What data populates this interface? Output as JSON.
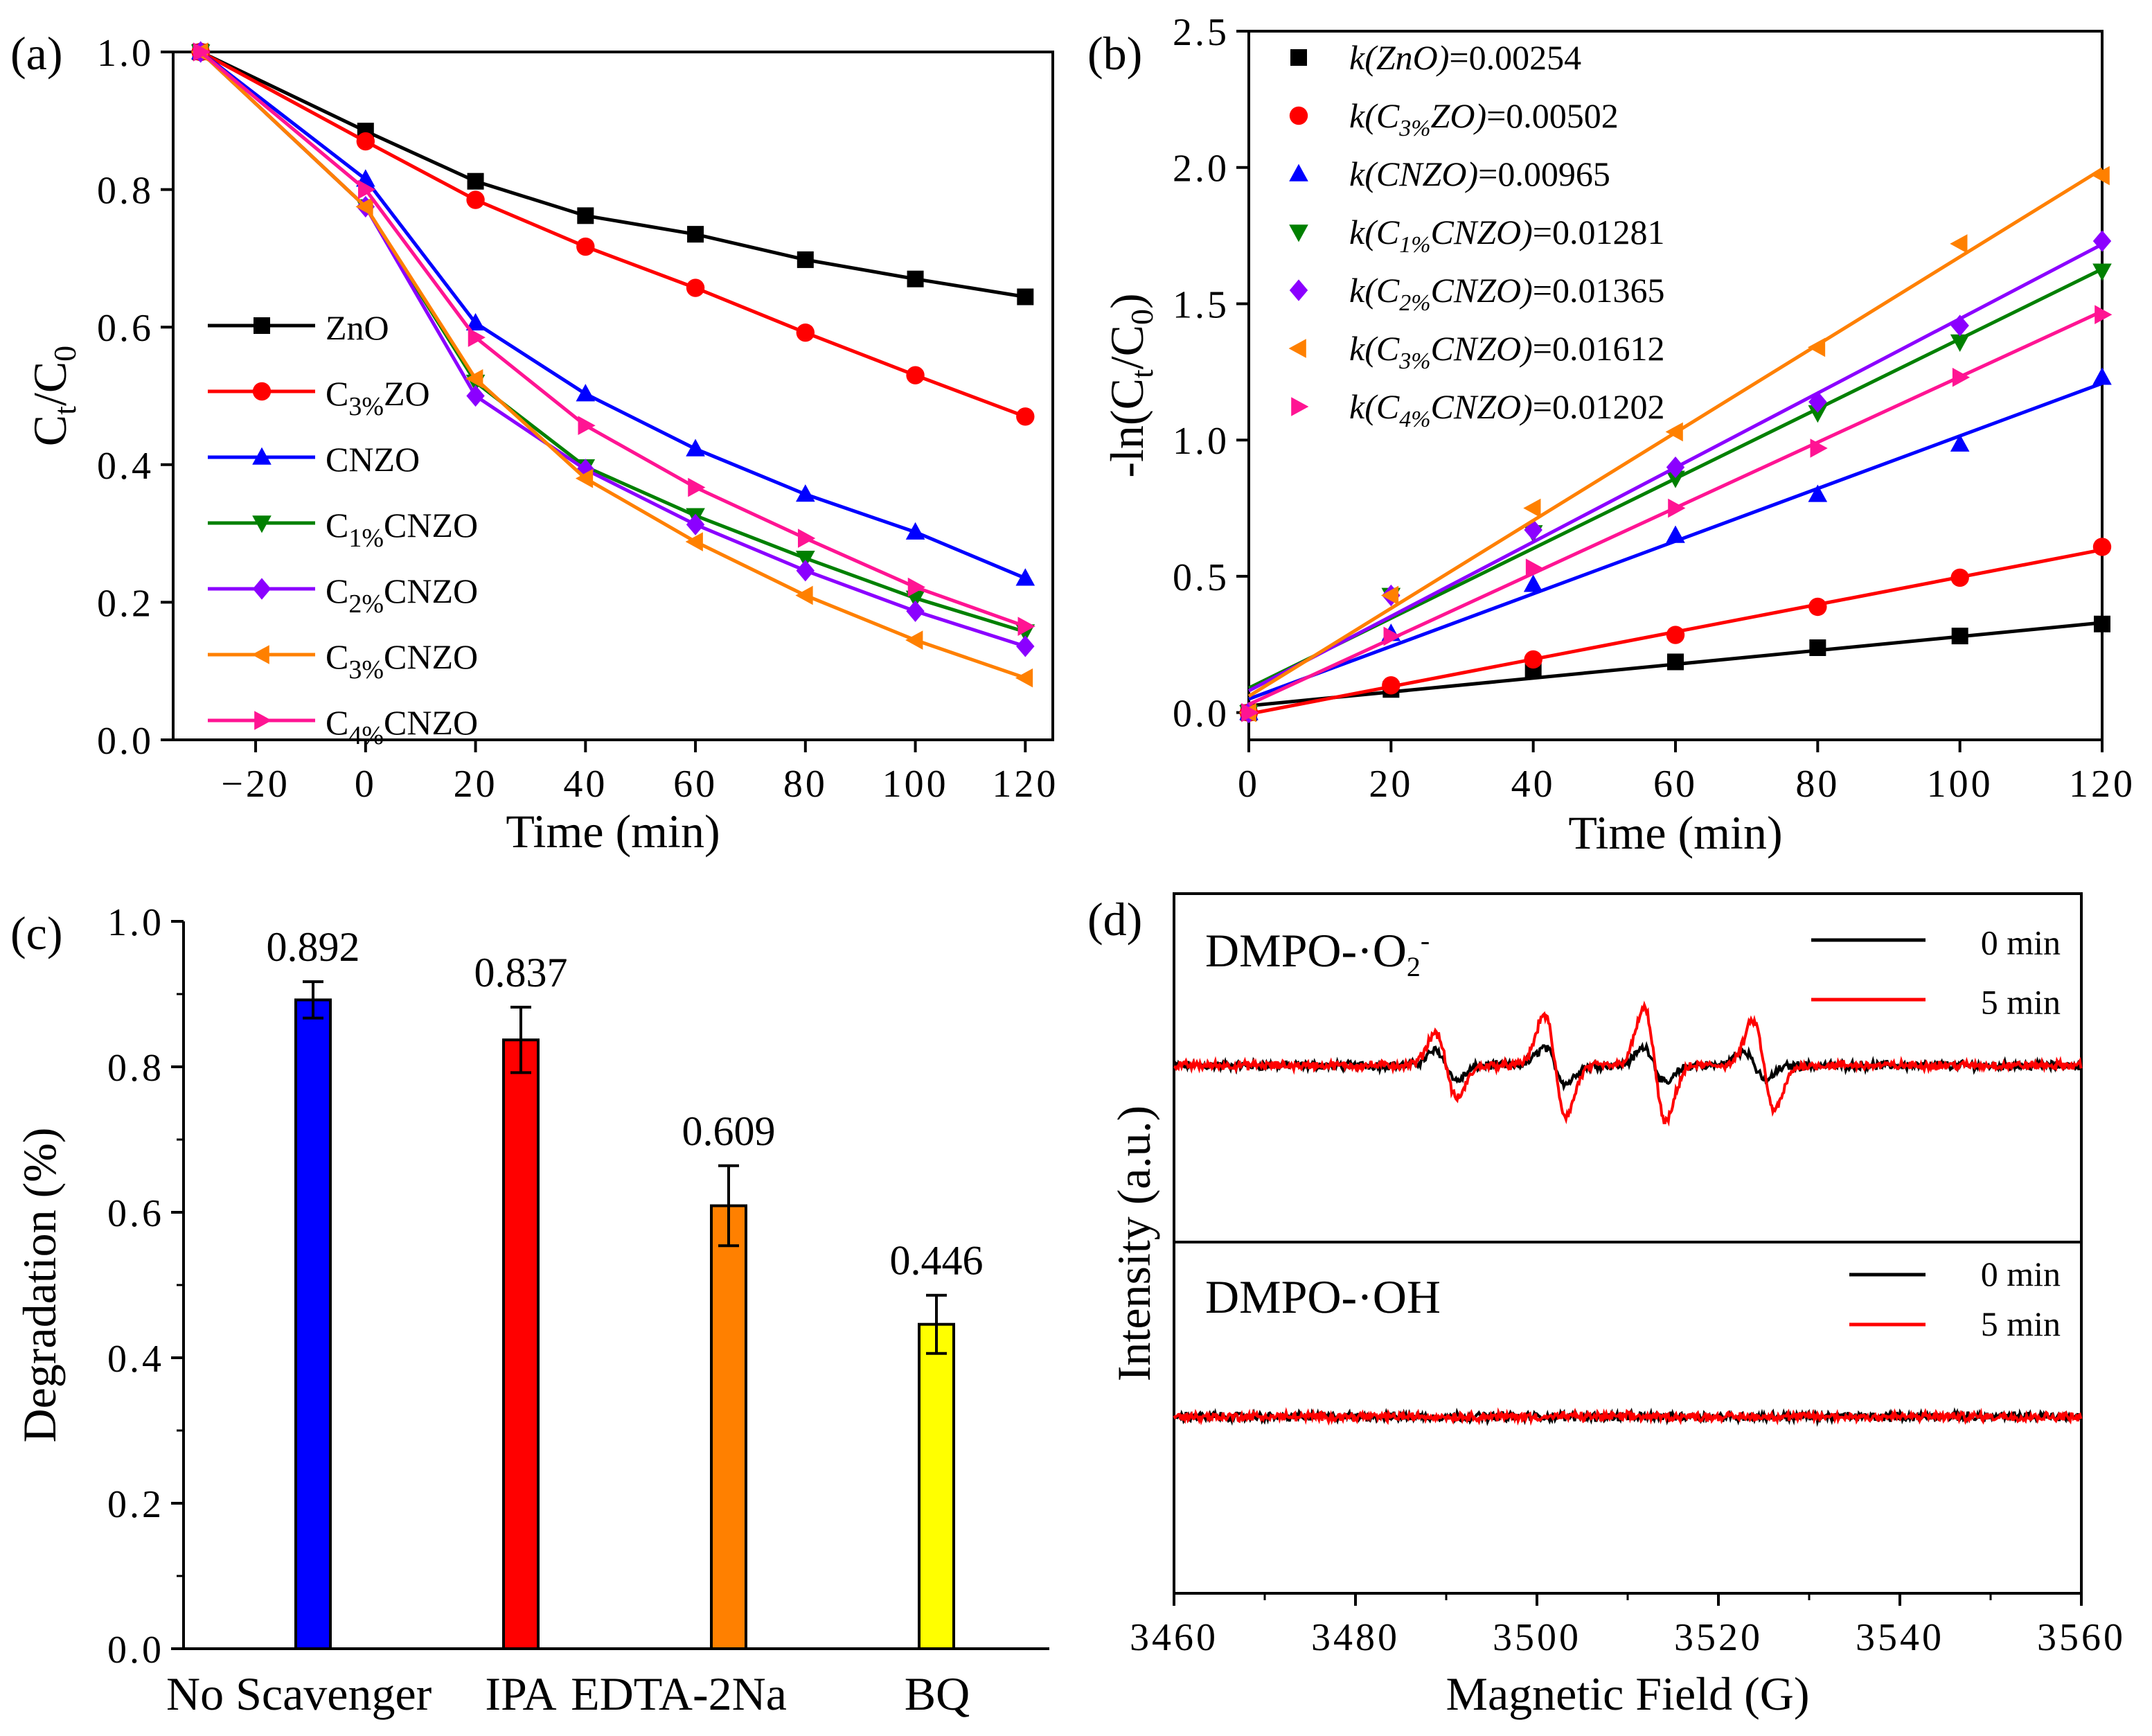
{
  "figure": {
    "panels": [
      "(a)",
      "(b)",
      "(c)",
      "(d)"
    ]
  },
  "chart_data": [
    {
      "id": "a",
      "type": "line",
      "panel_label": "(a)",
      "xlabel": "Time (min)",
      "ylabel_main": "C",
      "ylabel_sub1": "t",
      "ylabel_mid": "/C",
      "ylabel_sub2": "0",
      "xlim": [
        -35,
        125
      ],
      "ylim": [
        0,
        1.0
      ],
      "xticks": [
        -20,
        0,
        20,
        40,
        60,
        80,
        100,
        120
      ],
      "xtick_labels": [
        "−20",
        "0",
        "20",
        "40",
        "60",
        "80",
        "100",
        "120"
      ],
      "yticks": [
        0,
        0.2,
        0.4,
        0.6,
        0.8,
        1.0
      ],
      "ytick_labels": [
        "0.0",
        "0.2",
        "0.4",
        "0.6",
        "0.8",
        "1.0"
      ],
      "legend_position": "left-middle",
      "x": [
        -30,
        0,
        20,
        40,
        60,
        80,
        100,
        120
      ],
      "series": [
        {
          "name": "ZnO",
          "name_main": "ZnO",
          "name_sub": "",
          "name_rest": "",
          "color": "#000000",
          "marker": "square",
          "values": [
            1.0,
            0.885,
            0.812,
            0.762,
            0.735,
            0.698,
            0.67,
            0.644
          ]
        },
        {
          "name": "C3%ZO",
          "name_main": "C",
          "name_sub": "3%",
          "name_rest": "ZO",
          "color": "#ff0000",
          "marker": "circle",
          "values": [
            1.0,
            0.87,
            0.785,
            0.717,
            0.657,
            0.592,
            0.53,
            0.47
          ]
        },
        {
          "name": "CNZO",
          "name_main": "CNZO",
          "name_sub": "",
          "name_rest": "",
          "color": "#0000ff",
          "marker": "triangle-up",
          "values": [
            1.0,
            0.815,
            0.606,
            0.503,
            0.423,
            0.357,
            0.302,
            0.235
          ]
        },
        {
          "name": "C1%CNZO",
          "name_main": "C",
          "name_sub": "1%",
          "name_rest": "CNZO",
          "color": "#008000",
          "marker": "triangle-down",
          "values": [
            1.0,
            0.775,
            0.52,
            0.397,
            0.326,
            0.264,
            0.206,
            0.157
          ]
        },
        {
          "name": "C2%CNZO",
          "name_main": "C",
          "name_sub": "2%",
          "name_rest": "CNZO",
          "color": "#8b00ff",
          "marker": "diamond",
          "values": [
            1.0,
            0.775,
            0.5,
            0.393,
            0.313,
            0.246,
            0.187,
            0.136
          ]
        },
        {
          "name": "C3%CNZO",
          "name_main": "C",
          "name_sub": "3%",
          "name_rest": "CNZO",
          "color": "#ff8000",
          "marker": "triangle-left",
          "values": [
            1.0,
            0.775,
            0.525,
            0.38,
            0.288,
            0.21,
            0.145,
            0.09
          ]
        },
        {
          "name": "C4%CNZO",
          "name_main": "C",
          "name_sub": "4%",
          "name_rest": "CNZO",
          "color": "#ff1493",
          "marker": "triangle-right",
          "values": [
            1.0,
            0.8,
            0.585,
            0.457,
            0.367,
            0.293,
            0.222,
            0.165
          ]
        }
      ]
    },
    {
      "id": "b",
      "type": "scatter",
      "panel_label": "(b)",
      "xlabel": "Time (min)",
      "ylabel_pre": "-ln(C",
      "ylabel_sub1": "t",
      "ylabel_mid": "/C",
      "ylabel_sub2": "0",
      "ylabel_post": ")",
      "xlim": [
        0,
        120
      ],
      "ylim": [
        -0.1,
        2.5
      ],
      "xticks": [
        0,
        20,
        40,
        60,
        80,
        100,
        120
      ],
      "xtick_labels": [
        "0",
        "20",
        "40",
        "60",
        "80",
        "100",
        "120"
      ],
      "yticks": [
        0,
        0.5,
        1.0,
        1.5,
        2.0,
        2.5
      ],
      "ytick_labels": [
        "0.0",
        "0.5",
        "1.0",
        "1.5",
        "2.0",
        "2.5"
      ],
      "legend_position": "top-left",
      "x": [
        0,
        20,
        40,
        60,
        80,
        100,
        120
      ],
      "series": [
        {
          "name": "k(ZnO)=0.00254",
          "k_main": "k(ZnO",
          "k_sub": "",
          "k_rest": ")",
          "value_text": "=0.00254",
          "color": "#000000",
          "marker": "square",
          "values": [
            0.0,
            0.085,
            0.155,
            0.186,
            0.238,
            0.281,
            0.325
          ],
          "fit": {
            "intercept": 0.025,
            "slope": 0.00254
          }
        },
        {
          "name": "k(C3%ZO)=0.00502",
          "k_main": "k(C",
          "k_sub": "3%",
          "k_rest": "ZO)",
          "value_text": "=0.00502",
          "color": "#ff0000",
          "marker": "circle",
          "values": [
            0.0,
            0.1,
            0.195,
            0.285,
            0.388,
            0.495,
            0.608
          ],
          "fit": {
            "intercept": -0.005,
            "slope": 0.00502
          }
        },
        {
          "name": "k(CNZO)=0.00965",
          "k_main": "k(CNZO",
          "k_sub": "",
          "k_rest": ")",
          "value_text": "=0.00965",
          "color": "#0000ff",
          "marker": "triangle-up",
          "values": [
            0.0,
            0.29,
            0.47,
            0.65,
            0.8,
            0.985,
            1.23
          ],
          "fit": {
            "intercept": 0.05,
            "slope": 0.00965
          }
        },
        {
          "name": "k(C1%CNZO)=0.01281",
          "k_main": "k(C",
          "k_sub": "1%",
          "k_rest": "CNZO)",
          "value_text": "=0.01281",
          "color": "#008000",
          "marker": "triangle-down",
          "values": [
            0.0,
            0.43,
            0.66,
            0.86,
            1.1,
            1.36,
            1.62
          ],
          "fit": {
            "intercept": 0.09,
            "slope": 0.01281
          }
        },
        {
          "name": "k(C2%CNZO)=0.01365",
          "k_main": "k(C",
          "k_sub": "2%",
          "k_rest": "CNZO)",
          "value_text": "=0.01365",
          "color": "#8b00ff",
          "marker": "diamond",
          "values": [
            0.0,
            0.43,
            0.67,
            0.9,
            1.14,
            1.42,
            1.73
          ],
          "fit": {
            "intercept": 0.08,
            "slope": 0.01365
          }
        },
        {
          "name": "k(C3%CNZO)=0.01612",
          "k_main": "k(C",
          "k_sub": "3%",
          "k_rest": "CNZO)",
          "value_text": "=0.01612",
          "color": "#ff8000",
          "marker": "triangle-left",
          "values": [
            0.0,
            0.43,
            0.75,
            1.03,
            1.34,
            1.72,
            1.97
          ],
          "fit": {
            "intercept": 0.06,
            "slope": 0.01612
          }
        },
        {
          "name": "k(C4%CNZO)=0.01202",
          "k_main": "k(C",
          "k_sub": "4%",
          "k_rest": "CNZO)",
          "value_text": "=0.01202",
          "color": "#ff1493",
          "marker": "triangle-right",
          "values": [
            0.0,
            0.28,
            0.53,
            0.75,
            0.97,
            1.23,
            1.46
          ],
          "fit": {
            "intercept": 0.03,
            "slope": 0.01202
          }
        }
      ]
    },
    {
      "id": "c",
      "type": "bar",
      "panel_label": "(c)",
      "xlabel": "",
      "ylabel": "Degradation (%)",
      "ylim": [
        0,
        1.0
      ],
      "yticks": [
        0,
        0.2,
        0.4,
        0.6,
        0.8,
        1.0
      ],
      "ytick_labels": [
        "0.0",
        "0.2",
        "0.4",
        "0.6",
        "0.8",
        "1.0"
      ],
      "categories": [
        "No Scavenger",
        "IPA",
        "EDTA-2Na",
        "BQ"
      ],
      "values": [
        0.892,
        0.837,
        0.609,
        0.446
      ],
      "value_labels": [
        "0.892",
        "0.837",
        "0.609",
        "0.446"
      ],
      "errors": [
        0.025,
        0.045,
        0.055,
        0.04
      ],
      "colors": [
        "#0000ff",
        "#ff0000",
        "#ff8000",
        "#ffff00"
      ]
    },
    {
      "id": "d",
      "type": "line",
      "panel_label": "(d)",
      "xlabel": "Magnetic Field (G)",
      "ylabel": "Intensity (a.u.)",
      "xlim": [
        3460,
        3560
      ],
      "xticks": [
        3460,
        3480,
        3500,
        3520,
        3540,
        3560
      ],
      "xtick_labels": [
        "3460",
        "3480",
        "3500",
        "3520",
        "3540",
        "3560"
      ],
      "subplots": [
        {
          "label_main": "DMPO-·O",
          "label_sub": "2",
          "label_sup": "-",
          "legend_labels": [
            "0 min",
            "5 min"
          ],
          "series": [
            {
              "name": "0 min",
              "color": "#000000",
              "noise": 0.05,
              "peaks": [
                {
                  "center": 3490,
                  "amp": 0.25
                },
                {
                  "center": 3502,
                  "amp": 0.3
                },
                {
                  "center": 3513,
                  "amp": 0.3
                },
                {
                  "center": 3524,
                  "amp": 0.25
                }
              ]
            },
            {
              "name": "5 min",
              "color": "#ff0000",
              "noise": 0.05,
              "peaks": [
                {
                  "center": 3490,
                  "amp": 0.55
                },
                {
                  "center": 3502,
                  "amp": 0.85
                },
                {
                  "center": 3513,
                  "amp": 0.95
                },
                {
                  "center": 3525,
                  "amp": 0.75
                }
              ]
            }
          ]
        },
        {
          "label_main": "DMPO-·OH",
          "label_sub": "",
          "label_sup": "",
          "legend_labels": [
            "0 min",
            "5 min"
          ],
          "series": [
            {
              "name": "0 min",
              "color": "#000000",
              "noise": 0.05,
              "peaks": []
            },
            {
              "name": "5 min",
              "color": "#ff0000",
              "noise": 0.05,
              "peaks": []
            }
          ]
        }
      ]
    }
  ]
}
